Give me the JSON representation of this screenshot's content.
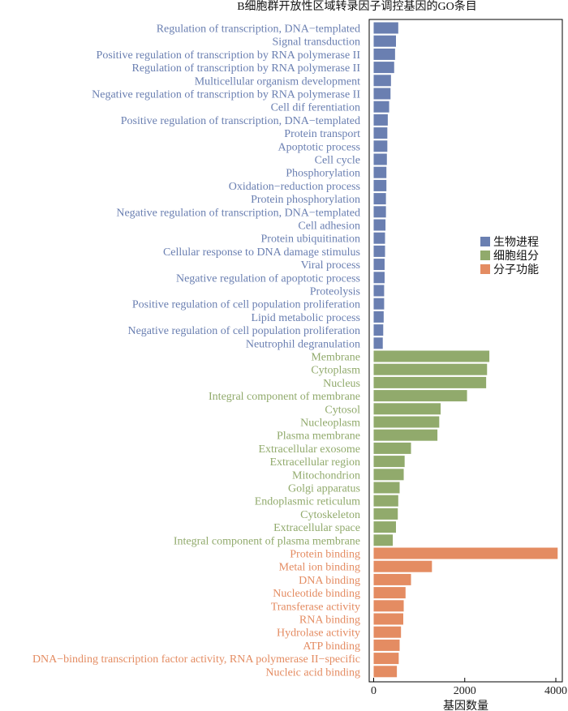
{
  "chart_data": {
    "type": "bar",
    "orientation": "horizontal",
    "title": "B细胞群开放性区域转录因子调控基因的GO条目",
    "xlabel": "基因数量",
    "ylabel": "",
    "xlim": [
      0,
      4100
    ],
    "xticks": [
      0,
      2000,
      4000
    ],
    "grid": false,
    "legend_position": "right",
    "series": [
      {
        "name": "生物进程",
        "color": "#6a7fb1",
        "categories": [
          "Regulation of transcription, DNA−templated",
          "Signal transduction",
          "Positive regulation of transcription by RNA polymerase II",
          "Regulation of transcription by RNA polymerase II",
          "Multicellular organism development",
          "Negative regulation of transcription by RNA polymerase II",
          "Cell dif ferentiation",
          "Positive regulation of transcription, DNA−templated",
          "Protein transport",
          "Apoptotic process",
          "Cell cycle",
          "Phosphorylation",
          "Oxidation−reduction process",
          "Protein phosphorylation",
          "Negative regulation of transcription, DNA−templated",
          "Cell adhesion",
          "Protein ubiquitination",
          "Cellular response to DNA damage stimulus",
          "Viral process",
          "Negative regulation of apoptotic process",
          "Proteolysis",
          "Positive regulation of cell population proliferation",
          "Lipid metabolic process",
          "Negative regulation of cell population proliferation",
          "Neutrophil degranulation"
        ],
        "values": [
          540,
          490,
          470,
          450,
          380,
          370,
          340,
          310,
          300,
          300,
          290,
          280,
          280,
          270,
          270,
          260,
          250,
          250,
          240,
          240,
          230,
          230,
          220,
          210,
          200
        ]
      },
      {
        "name": "细胞组分",
        "color": "#91aa6c",
        "categories": [
          "Membrane",
          "Cytoplasm",
          "Nucleus",
          "Integral component of membrane",
          "Cytosol",
          "Nucleoplasm",
          "Plasma membrane",
          "Extracellular exosome",
          "Extracellular region",
          "Mitochondrion",
          "Golgi apparatus",
          "Endoplasmic reticulum",
          "Cytoskeleton",
          "Extracellular space",
          "Integral component of plasma membrane"
        ],
        "values": [
          2540,
          2490,
          2470,
          2050,
          1470,
          1440,
          1400,
          820,
          680,
          660,
          570,
          540,
          530,
          490,
          420
        ]
      },
      {
        "name": "分子功能",
        "color": "#e48c62",
        "categories": [
          "Protein binding",
          "Metal ion binding",
          "DNA binding",
          "Nucleotide binding",
          "Transferase activity",
          "RNA binding",
          "Hydrolase activity",
          "ATP binding",
          "DNA−binding transcription factor activity, RNA polymerase II−specific",
          "Nucleic acid binding"
        ],
        "values": [
          4040,
          1280,
          820,
          700,
          660,
          650,
          600,
          570,
          550,
          510
        ]
      }
    ]
  }
}
